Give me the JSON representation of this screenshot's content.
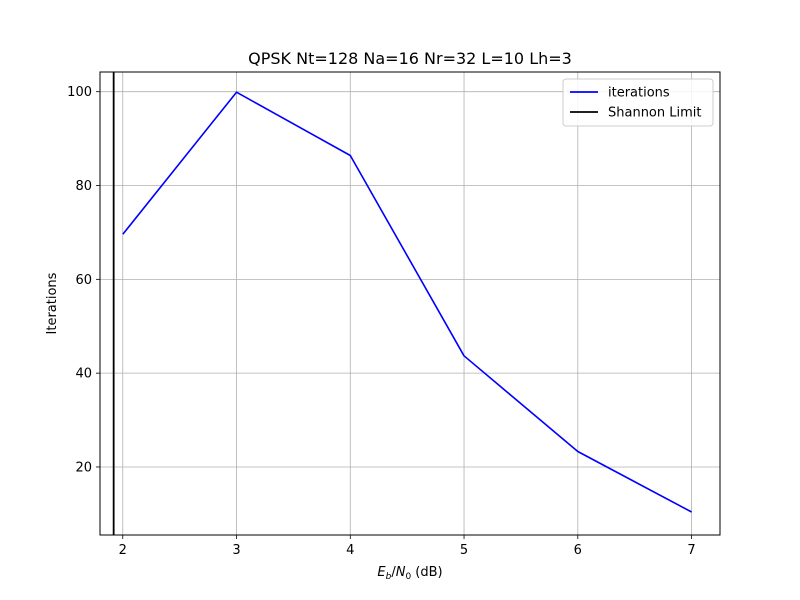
{
  "chart_data": {
    "type": "line",
    "title": "QPSK Nt=128 Na=16 Nr=32 L=10 Lh=3",
    "xlabel": "Eb/N0 (dB)",
    "ylabel": "Iterations",
    "xlim": [
      1.8,
      7.25
    ],
    "ylim": [
      5.5,
      104.2
    ],
    "xticks": [
      2,
      3,
      4,
      5,
      6,
      7
    ],
    "yticks": [
      20,
      40,
      60,
      80,
      100
    ],
    "grid": true,
    "legend_position": "top-right",
    "series": [
      {
        "name": "iterations",
        "color": "#0000ff",
        "x": [
          2,
          3,
          4,
          5,
          6,
          7
        ],
        "y": [
          69.6,
          99.9,
          86.4,
          43.7,
          23.3,
          10.4
        ]
      }
    ],
    "vlines": [
      {
        "name": "Shannon Limit",
        "color": "#000000",
        "x": 1.92
      }
    ]
  }
}
